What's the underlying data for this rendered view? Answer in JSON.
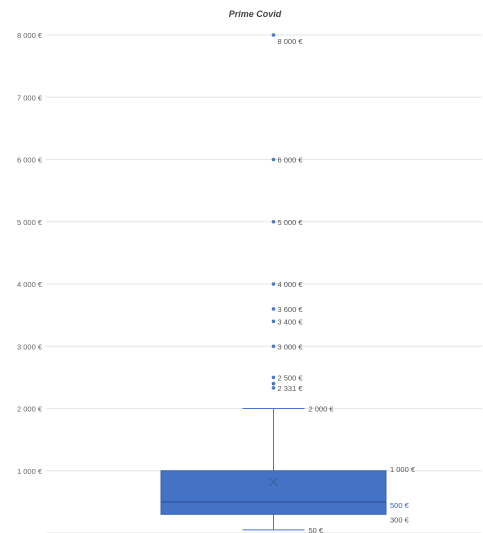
{
  "chart_data": {
    "type": "box",
    "title": "Prime Covid",
    "xlabel": "",
    "ylabel": "",
    "ylim": [
      0,
      8000
    ],
    "y_ticks": [
      {
        "value": 0,
        "label": "-"
      },
      {
        "value": 1000,
        "label": "1 000 €"
      },
      {
        "value": 2000,
        "label": "2 000 €"
      },
      {
        "value": 3000,
        "label": "3 000 €"
      },
      {
        "value": 4000,
        "label": "4 000 €"
      },
      {
        "value": 5000,
        "label": "5 000 €"
      },
      {
        "value": 6000,
        "label": "6 000 €"
      },
      {
        "value": 7000,
        "label": "7 000 €"
      },
      {
        "value": 8000,
        "label": "8 000 €"
      }
    ],
    "grid": true,
    "box": {
      "whisker_low": 50,
      "q1": 300,
      "median": 500,
      "q3": 1000,
      "whisker_high": 2000,
      "mean": 820,
      "color": "#4472c4"
    },
    "box_labels": [
      {
        "value": 2000,
        "label": "2 000 €",
        "anchor": "whisker_high"
      },
      {
        "value": 1000,
        "label": "1 000 €",
        "anchor": "q3"
      },
      {
        "value": 500,
        "label": "500 €",
        "anchor": "median",
        "highlight": true
      },
      {
        "value": 300,
        "label": "300 €",
        "anchor": "q1"
      },
      {
        "value": 50,
        "label": "50 €",
        "anchor": "whisker_low"
      }
    ],
    "outliers": [
      {
        "value": 8000,
        "label": "8 000 €"
      },
      {
        "value": 6000,
        "label": "6 000 €"
      },
      {
        "value": 5000,
        "label": "5 000 €"
      },
      {
        "value": 4000,
        "label": "4 000 €"
      },
      {
        "value": 3600,
        "label": "3 600 €"
      },
      {
        "value": 3400,
        "label": "3 400 €"
      },
      {
        "value": 3000,
        "label": "3 000 €"
      },
      {
        "value": 2500,
        "label": "2 500 €"
      },
      {
        "value": 2400,
        "label": ""
      },
      {
        "value": 2331,
        "label": "2 331 €"
      }
    ],
    "colors": {
      "box": "#4472c4",
      "line": "#4a78c8",
      "grid": "#e6e6e6",
      "text": "#555555",
      "highlight": "#2f5fc4"
    }
  }
}
